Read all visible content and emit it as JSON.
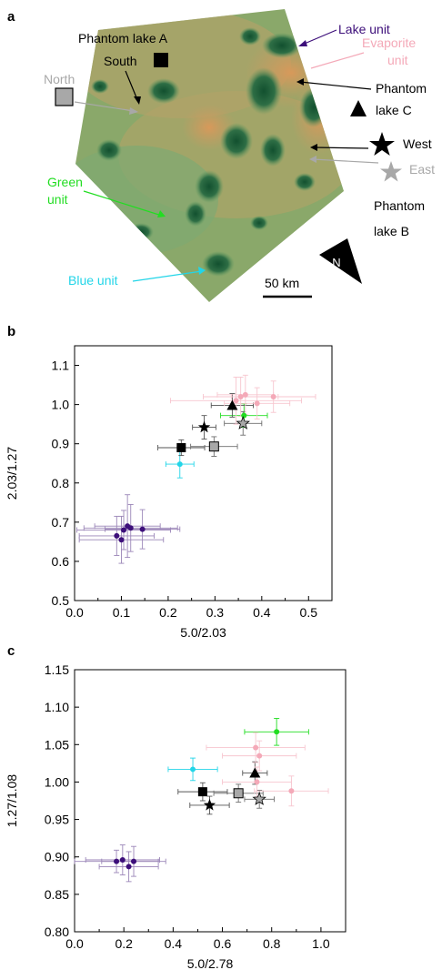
{
  "panel_a": {
    "label": "a",
    "annotations": {
      "lake_unit": "Lake unit",
      "evaporite_unit_line1": "Evaporite",
      "evaporite_unit_line2": "unit",
      "phantom_lake_a": "Phantom lake A",
      "south": "South",
      "north": "North",
      "phantom_lake_c_line1": "Phantom",
      "phantom_lake_c_line2": "lake C",
      "west": "West",
      "east": "East",
      "green_unit_line1": "Green",
      "green_unit_line2": "unit",
      "phantom_lake_b_line1": "Phantom",
      "phantom_lake_b_line2": "lake B",
      "blue_unit": "Blue unit",
      "scale_bar": "50 km",
      "compass": "N"
    },
    "colors": {
      "lake_unit": "#3d0f7a",
      "evaporite": "#f4a9b8",
      "green_unit": "#22dd22",
      "blue_unit": "#22d5e8",
      "gray": "#a8a8a8",
      "black": "#000000"
    }
  },
  "chart_data": [
    {
      "panel": "b",
      "type": "scatter",
      "xlabel": "5.0/2.03",
      "ylabel": "2.03/1.27",
      "xlim": [
        0.0,
        0.55
      ],
      "ylim": [
        0.5,
        1.15
      ],
      "xticks": [
        "0.0",
        "0.05",
        "0.10",
        "0.15",
        "0.20",
        "0.25",
        "0.30",
        "0.35",
        "0.40",
        "0.45",
        "0.50"
      ],
      "xtick_labels": [
        "0.0",
        "0.1",
        "0.2",
        "0.3",
        "0.4",
        "0.5"
      ],
      "yticks": [
        "0.5",
        "0.6",
        "0.7",
        "0.8",
        "0.9",
        "1.0",
        "1.1"
      ],
      "points": [
        {
          "group": "lake",
          "marker": "circle",
          "color": "#3d0f7a",
          "x": 0.09,
          "y": 0.665,
          "xerr": 0.08,
          "yerr": 0.05
        },
        {
          "group": "lake",
          "marker": "circle",
          "color": "#3d0f7a",
          "x": 0.1,
          "y": 0.655,
          "xerr": 0.09,
          "yerr": 0.06
        },
        {
          "group": "lake",
          "marker": "circle",
          "color": "#3d0f7a",
          "x": 0.105,
          "y": 0.68,
          "xerr": 0.1,
          "yerr": 0.05
        },
        {
          "group": "lake",
          "marker": "circle",
          "color": "#3d0f7a",
          "x": 0.113,
          "y": 0.69,
          "xerr": 0.07,
          "yerr": 0.08
        },
        {
          "group": "lake",
          "marker": "circle",
          "color": "#3d0f7a",
          "x": 0.12,
          "y": 0.685,
          "xerr": 0.1,
          "yerr": 0.06
        },
        {
          "group": "lake",
          "marker": "circle",
          "color": "#3d0f7a",
          "x": 0.145,
          "y": 0.682,
          "xerr": 0.08,
          "yerr": 0.05
        },
        {
          "group": "blue",
          "marker": "circle",
          "color": "#22d5e8",
          "x": 0.225,
          "y": 0.848,
          "xerr": 0.03,
          "yerr": 0.035
        },
        {
          "group": "phantom_a",
          "marker": "square",
          "color": "#000000",
          "x": 0.228,
          "y": 0.89,
          "xerr": 0.05,
          "yerr": 0.02
        },
        {
          "group": "north",
          "marker": "square",
          "color": "#a8a8a8",
          "x": 0.298,
          "y": 0.893,
          "xerr": 0.05,
          "yerr": 0.025
        },
        {
          "group": "west",
          "marker": "star",
          "color": "#000000",
          "x": 0.277,
          "y": 0.942,
          "xerr": 0.025,
          "yerr": 0.03
        },
        {
          "group": "green",
          "marker": "circle",
          "color": "#22dd22",
          "x": 0.362,
          "y": 0.972,
          "xerr": 0.05,
          "yerr": 0.03
        },
        {
          "group": "phantom_c",
          "marker": "triangle",
          "color": "#000000",
          "x": 0.337,
          "y": 0.998,
          "xerr": 0.045,
          "yerr": 0.03
        },
        {
          "group": "east",
          "marker": "star",
          "color": "#a8a8a8",
          "x": 0.36,
          "y": 0.952,
          "xerr": 0.04,
          "yerr": 0.03
        },
        {
          "group": "evaporite",
          "marker": "circle",
          "color": "#f4a9b8",
          "x": 0.345,
          "y": 1.01,
          "xerr": 0.14,
          "yerr": 0.06
        },
        {
          "group": "evaporite",
          "marker": "circle",
          "color": "#f4a9b8",
          "x": 0.355,
          "y": 1.02,
          "xerr": 0.08,
          "yerr": 0.05
        },
        {
          "group": "evaporite",
          "marker": "circle",
          "color": "#f4a9b8",
          "x": 0.365,
          "y": 1.025,
          "xerr": 0.06,
          "yerr": 0.05
        },
        {
          "group": "evaporite",
          "marker": "circle",
          "color": "#f4a9b8",
          "x": 0.39,
          "y": 1.003,
          "xerr": 0.07,
          "yerr": 0.04
        },
        {
          "group": "evaporite",
          "marker": "circle",
          "color": "#f4a9b8",
          "x": 0.425,
          "y": 1.02,
          "xerr": 0.09,
          "yerr": 0.04
        }
      ]
    },
    {
      "panel": "c",
      "type": "scatter",
      "xlabel": "5.0/2.78",
      "ylabel": "1.27/1.08",
      "xlim": [
        0.0,
        1.1
      ],
      "ylim": [
        0.8,
        1.15
      ],
      "xtick_labels": [
        "0.0",
        "0.2",
        "0.4",
        "0.6",
        "0.8",
        "1.0"
      ],
      "yticks": [
        "0.80",
        "0.85",
        "0.90",
        "0.95",
        "1.00",
        "1.05",
        "1.10",
        "1.15"
      ],
      "points": [
        {
          "group": "lake",
          "marker": "circle",
          "color": "#3d0f7a",
          "x": 0.17,
          "y": 0.894,
          "xerr": 0.17,
          "yerr": 0.015
        },
        {
          "group": "lake",
          "marker": "circle",
          "color": "#3d0f7a",
          "x": 0.195,
          "y": 0.896,
          "xerr": 0.15,
          "yerr": 0.02
        },
        {
          "group": "lake",
          "marker": "circle",
          "color": "#3d0f7a",
          "x": 0.22,
          "y": 0.887,
          "xerr": 0.12,
          "yerr": 0.02
        },
        {
          "group": "lake",
          "marker": "circle",
          "color": "#3d0f7a",
          "x": 0.24,
          "y": 0.894,
          "xerr": 0.13,
          "yerr": 0.02
        },
        {
          "group": "blue",
          "marker": "circle",
          "color": "#22d5e8",
          "x": 0.48,
          "y": 1.017,
          "xerr": 0.1,
          "yerr": 0.015
        },
        {
          "group": "phantom_a",
          "marker": "square",
          "color": "#000000",
          "x": 0.52,
          "y": 0.987,
          "xerr": 0.1,
          "yerr": 0.012
        },
        {
          "group": "west",
          "marker": "star",
          "color": "#000000",
          "x": 0.548,
          "y": 0.969,
          "xerr": 0.08,
          "yerr": 0.012
        },
        {
          "group": "north",
          "marker": "square",
          "color": "#a8a8a8",
          "x": 0.665,
          "y": 0.985,
          "xerr": 0.1,
          "yerr": 0.012
        },
        {
          "group": "phantom_c",
          "marker": "triangle",
          "color": "#000000",
          "x": 0.732,
          "y": 1.012,
          "xerr": 0.05,
          "yerr": 0.015
        },
        {
          "group": "east",
          "marker": "star",
          "color": "#a8a8a8",
          "x": 0.75,
          "y": 0.977,
          "xerr": 0.06,
          "yerr": 0.012
        },
        {
          "group": "green",
          "marker": "circle",
          "color": "#22dd22",
          "x": 0.82,
          "y": 1.067,
          "xerr": 0.13,
          "yerr": 0.018
        },
        {
          "group": "evaporite",
          "marker": "circle",
          "color": "#f4a9b8",
          "x": 0.735,
          "y": 1.046,
          "xerr": 0.2,
          "yerr": 0.02
        },
        {
          "group": "evaporite",
          "marker": "circle",
          "color": "#f4a9b8",
          "x": 0.75,
          "y": 1.035,
          "xerr": 0.15,
          "yerr": 0.02
        },
        {
          "group": "evaporite",
          "marker": "circle",
          "color": "#f4a9b8",
          "x": 0.74,
          "y": 1.0,
          "xerr": 0.14,
          "yerr": 0.02
        },
        {
          "group": "evaporite",
          "marker": "circle",
          "color": "#f4a9b8",
          "x": 0.88,
          "y": 0.988,
          "xerr": 0.15,
          "yerr": 0.02
        }
      ]
    }
  ]
}
